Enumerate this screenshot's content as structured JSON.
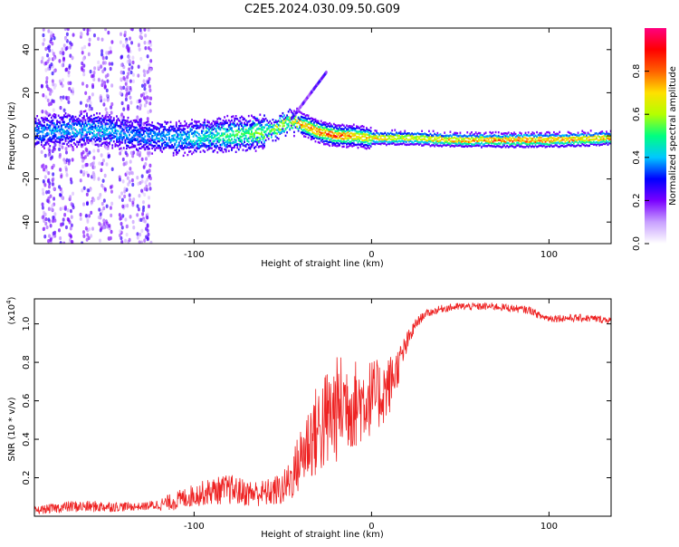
{
  "chart_data": [
    {
      "type": "heatmap",
      "title": "C2E5.2024.030.09.50.G09",
      "xlabel": "Height of straight line (km)",
      "ylabel": "Frequency (Hz)",
      "xlim": [
        -190,
        135
      ],
      "ylim": [
        -50,
        50
      ],
      "xticks": [
        -100,
        0,
        100
      ],
      "yticks": [
        -40,
        -20,
        0,
        20,
        40
      ],
      "colorbar": {
        "label": "Normalized spectral amplitude",
        "range": [
          0.0,
          1.0
        ],
        "ticks": [
          "0.0",
          "0.2",
          "0.4",
          "0.6",
          "0.8"
        ],
        "colormap": "rainbow",
        "stops": [
          "#ffffff",
          "#c8a0ff",
          "#7a00ff",
          "#0000ff",
          "#00c8ff",
          "#00ff80",
          "#b4ff00",
          "#ffe000",
          "#ff6000",
          "#ff0000",
          "#ff0080"
        ]
      },
      "ridge": {
        "description": "dominant frequency vs height",
        "x": [
          -190,
          -170,
          -150,
          -130,
          -110,
          -90,
          -70,
          -55,
          -45,
          -38,
          -30,
          -20,
          -10,
          0,
          20,
          50,
          80,
          100,
          135
        ],
        "y": [
          2,
          3,
          3,
          0,
          -1,
          0,
          1,
          3,
          7,
          5,
          2,
          0,
          0,
          -1,
          -1,
          -2,
          -2,
          -2,
          -1
        ],
        "peak_amplitude": [
          0.3,
          0.35,
          0.35,
          0.3,
          0.35,
          0.45,
          0.55,
          0.6,
          0.7,
          0.85,
          0.9,
          0.95,
          0.8,
          0.75,
          0.7,
          0.8,
          0.9,
          0.85,
          0.8
        ]
      },
      "grid": false
    },
    {
      "type": "line",
      "xlabel": "Height of straight line (km)",
      "ylabel": "SNR (10 * v/v)",
      "yscale_label": "(x10",
      "yscale_exp": "4",
      "yscale_close": ")",
      "xlim": [
        -190,
        135
      ],
      "ylim": [
        0.0,
        1.13
      ],
      "xticks": [
        -100,
        0,
        100
      ],
      "yticks": [
        "0.2",
        "0.4",
        "0.6",
        "0.8",
        "1.0"
      ],
      "color": "#ee2222",
      "series": [
        {
          "x": [
            -190,
            -170,
            -150,
            -130,
            -120,
            -110,
            -100,
            -90,
            -80,
            -70,
            -60,
            -50,
            -45,
            -40,
            -35,
            -30,
            -25,
            -20,
            -15,
            -10,
            -5,
            0,
            5,
            10,
            15,
            20,
            25,
            30,
            40,
            50,
            60,
            70,
            80,
            90,
            95,
            100,
            110,
            120,
            135
          ],
          "y": [
            0.03,
            0.05,
            0.05,
            0.05,
            0.06,
            0.08,
            0.11,
            0.13,
            0.14,
            0.12,
            0.12,
            0.14,
            0.2,
            0.3,
            0.4,
            0.45,
            0.5,
            0.55,
            0.6,
            0.58,
            0.6,
            0.62,
            0.63,
            0.68,
            0.78,
            0.9,
            1.0,
            1.05,
            1.08,
            1.09,
            1.09,
            1.09,
            1.08,
            1.07,
            1.04,
            1.03,
            1.03,
            1.03,
            1.02
          ],
          "noise": [
            0.02,
            0.03,
            0.03,
            0.02,
            0.03,
            0.05,
            0.06,
            0.07,
            0.08,
            0.07,
            0.07,
            0.09,
            0.12,
            0.17,
            0.22,
            0.25,
            0.28,
            0.28,
            0.26,
            0.24,
            0.22,
            0.2,
            0.18,
            0.16,
            0.1,
            0.06,
            0.03,
            0.02,
            0.02,
            0.02,
            0.02,
            0.02,
            0.02,
            0.02,
            0.02,
            0.02,
            0.02,
            0.02,
            0.02
          ]
        }
      ],
      "grid": false
    }
  ]
}
